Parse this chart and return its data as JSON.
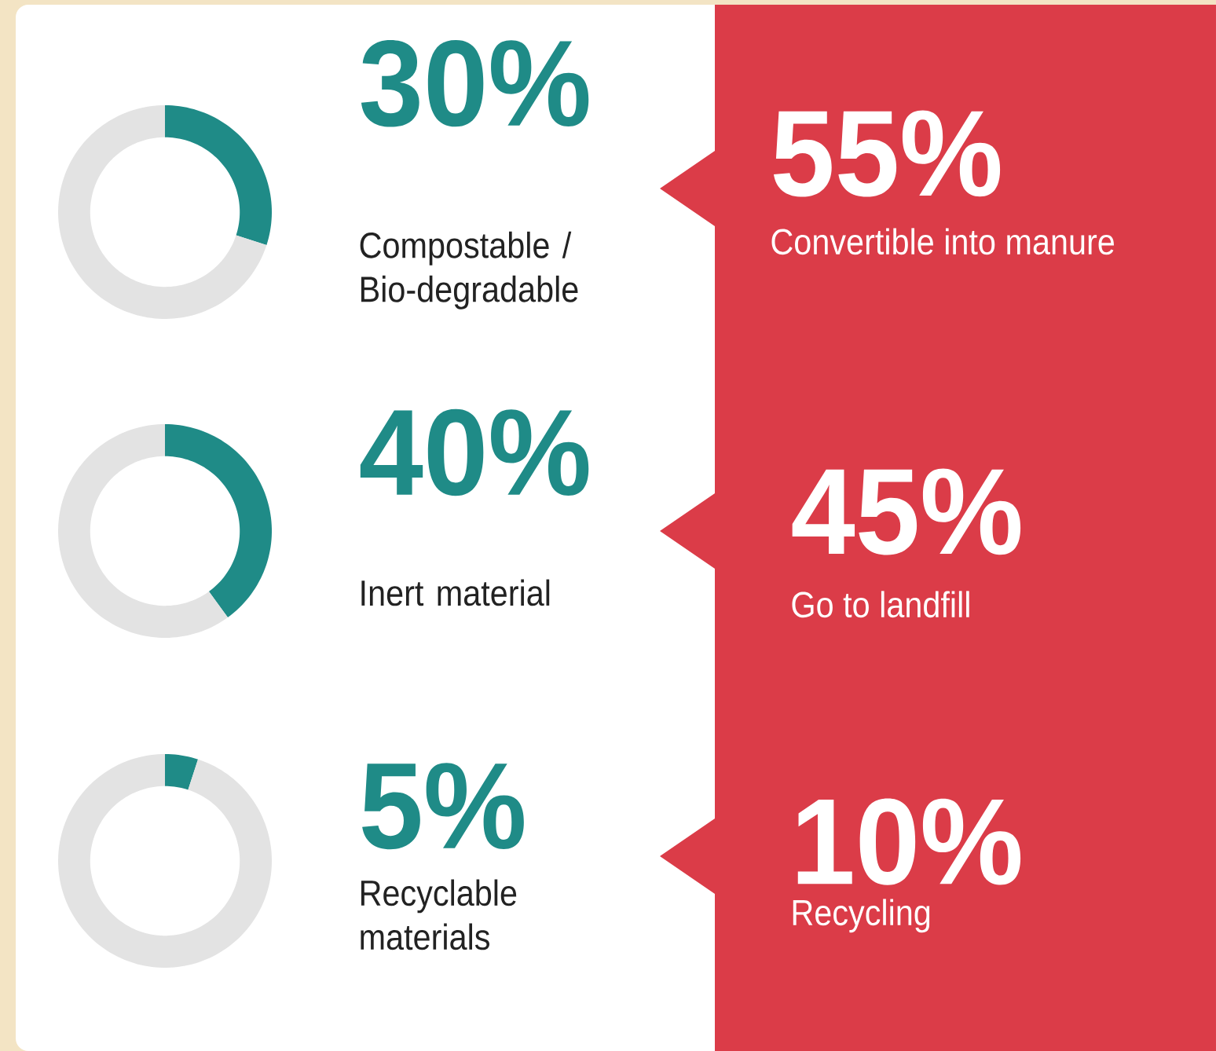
{
  "chart_data": [
    {
      "type": "donut",
      "categories": [
        null,
        null
      ],
      "values": [
        30,
        70
      ],
      "colors": [
        "#1f8b87",
        "#e3e3e3"
      ],
      "title": "30%",
      "annotations": [
        "Compostable / Bio-degradable"
      ]
    },
    {
      "type": "donut",
      "categories": [
        null,
        null
      ],
      "values": [
        40,
        60
      ],
      "colors": [
        "#1f8b87",
        "#e3e3e3"
      ],
      "title": "40%",
      "annotations": [
        "Inert material"
      ]
    },
    {
      "type": "donut",
      "categories": [
        null,
        null
      ],
      "values": [
        5,
        95
      ],
      "colors": [
        "#1f8b87",
        "#e3e3e3"
      ],
      "title": "5%",
      "annotations": [
        "Recyclable materials"
      ]
    },
    {
      "type": "other",
      "color": "#db3c48",
      "annotations": [
        "55%",
        "Convertible into manure",
        "45%",
        "Go to landfill",
        "10%",
        "Recycling"
      ]
    }
  ]
}
